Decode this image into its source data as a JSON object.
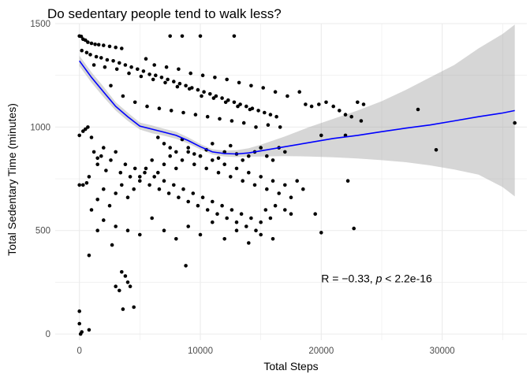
{
  "chart_data": {
    "type": "scatter",
    "title": "Do sedentary people tend to walk less?",
    "xlabel": "Total Steps",
    "ylabel": "Total Sedentary Time (minutes)",
    "xlim": [
      -2000,
      37000
    ],
    "ylim": [
      -30,
      1500
    ],
    "x_ticks": [
      0,
      10000,
      20000,
      30000
    ],
    "x_tick_labels": [
      "0",
      "10000",
      "20000",
      "30000"
    ],
    "y_ticks": [
      0,
      500,
      1000,
      1500
    ],
    "y_tick_labels": [
      "0",
      "500",
      "1000",
      "1500"
    ],
    "grid": true,
    "legend": "none",
    "annotation": {
      "prefix": "R = −0.33, ",
      "p_symbol": "p",
      "suffix": " < 2.2e-16",
      "x": 20000,
      "y": 250
    },
    "colors": {
      "points": "#000000",
      "smooth_line": "#0000ff",
      "ribbon": "#999999",
      "grid": "#ebebeb"
    },
    "smooth": {
      "type": "loess",
      "x": [
        0,
        1000,
        2000,
        3000,
        4000,
        5000,
        6000,
        7000,
        8000,
        9000,
        10000,
        11000,
        12000,
        13000,
        14000,
        15000,
        17000,
        19000,
        21000,
        23000,
        25000,
        27000,
        29000,
        31000,
        33000,
        35000,
        36000
      ],
      "y": [
        1320,
        1240,
        1170,
        1100,
        1050,
        1005,
        990,
        975,
        960,
        935,
        905,
        880,
        872,
        870,
        875,
        885,
        905,
        925,
        945,
        960,
        978,
        995,
        1010,
        1030,
        1050,
        1068,
        1080
      ],
      "lower": [
        1295,
        1215,
        1145,
        1080,
        1030,
        988,
        970,
        958,
        943,
        920,
        892,
        867,
        858,
        855,
        857,
        858,
        860,
        858,
        854,
        848,
        840,
        830,
        815,
        795,
        770,
        710,
        665
      ],
      "upper": [
        1345,
        1265,
        1195,
        1120,
        1070,
        1022,
        1008,
        992,
        977,
        950,
        918,
        893,
        886,
        888,
        898,
        915,
        955,
        1000,
        1040,
        1080,
        1125,
        1180,
        1240,
        1300,
        1380,
        1450,
        1495
      ]
    },
    "series": [
      {
        "name": "",
        "points": [
          [
            0,
            1440
          ],
          [
            150,
            1438
          ],
          [
            300,
            1425
          ],
          [
            500,
            1420
          ],
          [
            700,
            1410
          ],
          [
            1000,
            1405
          ],
          [
            1300,
            1400
          ],
          [
            1600,
            1398
          ],
          [
            2000,
            1395
          ],
          [
            2500,
            1390
          ],
          [
            3000,
            1385
          ],
          [
            3500,
            1380
          ],
          [
            200,
            1370
          ],
          [
            600,
            1360
          ],
          [
            900,
            1350
          ],
          [
            1400,
            1340
          ],
          [
            1800,
            1335
          ],
          [
            2300,
            1325
          ],
          [
            2800,
            1320
          ],
          [
            3300,
            1310
          ],
          [
            3800,
            1300
          ],
          [
            4300,
            1290
          ],
          [
            4800,
            1280
          ],
          [
            5300,
            1270
          ],
          [
            5800,
            1255
          ],
          [
            6300,
            1250
          ],
          [
            6800,
            1240
          ],
          [
            7300,
            1230
          ],
          [
            7800,
            1220
          ],
          [
            8300,
            1210
          ],
          [
            8800,
            1200
          ],
          [
            9300,
            1190
          ],
          [
            9800,
            1180
          ],
          [
            10300,
            1170
          ],
          [
            10800,
            1160
          ],
          [
            11300,
            1150
          ],
          [
            11800,
            1140
          ],
          [
            12300,
            1130
          ],
          [
            12800,
            1120
          ],
          [
            13300,
            1110
          ],
          [
            13800,
            1100
          ],
          [
            14300,
            1090
          ],
          [
            14800,
            1080
          ],
          [
            15300,
            1070
          ],
          [
            15800,
            1060
          ],
          [
            16300,
            1050
          ],
          [
            1200,
            1300
          ],
          [
            2100,
            1290
          ],
          [
            3100,
            1280
          ],
          [
            4100,
            1260
          ],
          [
            5100,
            1245
          ],
          [
            6100,
            1230
          ],
          [
            7100,
            1215
          ],
          [
            8100,
            1195
          ],
          [
            9100,
            1185
          ],
          [
            10100,
            1150
          ],
          [
            11100,
            1140
          ],
          [
            12100,
            1120
          ],
          [
            13100,
            1100
          ],
          [
            14100,
            1085
          ],
          [
            2600,
            1200
          ],
          [
            3600,
            1150
          ],
          [
            4600,
            1120
          ],
          [
            5600,
            1100
          ],
          [
            6600,
            1090
          ],
          [
            7600,
            1080
          ],
          [
            8600,
            1070
          ],
          [
            9600,
            1060
          ],
          [
            10600,
            1050
          ],
          [
            11600,
            1040
          ],
          [
            12600,
            1030
          ],
          [
            13600,
            1020
          ],
          [
            14600,
            1000
          ],
          [
            15600,
            1010
          ],
          [
            16600,
            1000
          ],
          [
            5500,
            1330
          ],
          [
            6200,
            1300
          ],
          [
            7200,
            1290
          ],
          [
            8200,
            1280
          ],
          [
            9200,
            1260
          ],
          [
            10200,
            1250
          ],
          [
            11200,
            1240
          ],
          [
            12200,
            1230
          ],
          [
            13200,
            1215
          ],
          [
            14200,
            1200
          ],
          [
            15200,
            1190
          ],
          [
            16200,
            1170
          ],
          [
            17200,
            1150
          ],
          [
            7500,
            1440
          ],
          [
            8500,
            1440
          ],
          [
            10000,
            1440
          ],
          [
            12800,
            1440
          ],
          [
            18200,
            1170
          ],
          [
            18700,
            1110
          ],
          [
            19200,
            1100
          ],
          [
            19800,
            1110
          ],
          [
            20400,
            1120
          ],
          [
            21000,
            1100
          ],
          [
            21500,
            1080
          ],
          [
            22000,
            1060
          ],
          [
            22500,
            1050
          ],
          [
            23000,
            1120
          ],
          [
            23500,
            1110
          ],
          [
            20000,
            960
          ],
          [
            22000,
            960
          ],
          [
            23300,
            1030
          ],
          [
            28000,
            1085
          ],
          [
            29500,
            890
          ],
          [
            36000,
            1020
          ],
          [
            300,
            720
          ],
          [
            800,
            760
          ],
          [
            1200,
            880
          ],
          [
            1500,
            820
          ],
          [
            1800,
            860
          ],
          [
            2200,
            790
          ],
          [
            2600,
            840
          ],
          [
            3000,
            880
          ],
          [
            3400,
            780
          ],
          [
            3800,
            820
          ],
          [
            4200,
            760
          ],
          [
            4600,
            800
          ],
          [
            5000,
            740
          ],
          [
            5400,
            780
          ],
          [
            5800,
            720
          ],
          [
            6200,
            760
          ],
          [
            6600,
            700
          ],
          [
            7000,
            740
          ],
          [
            7400,
            680
          ],
          [
            7800,
            720
          ],
          [
            8200,
            660
          ],
          [
            8600,
            700
          ],
          [
            9000,
            640
          ],
          [
            9400,
            680
          ],
          [
            9800,
            620
          ],
          [
            10200,
            660
          ],
          [
            10600,
            600
          ],
          [
            11000,
            640
          ],
          [
            11400,
            580
          ],
          [
            11800,
            620
          ],
          [
            12200,
            560
          ],
          [
            12600,
            600
          ],
          [
            13000,
            540
          ],
          [
            13400,
            580
          ],
          [
            13800,
            520
          ],
          [
            14200,
            560
          ],
          [
            14600,
            500
          ],
          [
            15000,
            540
          ],
          [
            15400,
            600
          ],
          [
            15800,
            560
          ],
          [
            16200,
            620
          ],
          [
            1000,
            600
          ],
          [
            1500,
            650
          ],
          [
            2000,
            700
          ],
          [
            2500,
            620
          ],
          [
            3000,
            680
          ],
          [
            3500,
            720
          ],
          [
            4000,
            660
          ],
          [
            4500,
            700
          ],
          [
            5000,
            760
          ],
          [
            5500,
            800
          ],
          [
            6000,
            840
          ],
          [
            6500,
            780
          ],
          [
            7000,
            820
          ],
          [
            7500,
            860
          ],
          [
            8000,
            800
          ],
          [
            8500,
            840
          ],
          [
            9000,
            880
          ],
          [
            9500,
            820
          ],
          [
            10000,
            860
          ],
          [
            10500,
            800
          ],
          [
            11000,
            840
          ],
          [
            11500,
            780
          ],
          [
            12000,
            820
          ],
          [
            12500,
            760
          ],
          [
            13000,
            800
          ],
          [
            13500,
            740
          ],
          [
            14000,
            780
          ],
          [
            14500,
            720
          ],
          [
            15000,
            760
          ],
          [
            15500,
            700
          ],
          [
            16000,
            740
          ],
          [
            16500,
            680
          ],
          [
            17000,
            720
          ],
          [
            17500,
            660
          ],
          [
            18000,
            740
          ],
          [
            18500,
            700
          ],
          [
            2000,
            550
          ],
          [
            3000,
            520
          ],
          [
            4000,
            500
          ],
          [
            5000,
            480
          ],
          [
            6000,
            560
          ],
          [
            7000,
            500
          ],
          [
            8000,
            460
          ],
          [
            9000,
            520
          ],
          [
            10000,
            480
          ],
          [
            11000,
            540
          ],
          [
            12000,
            460
          ],
          [
            13000,
            500
          ],
          [
            14000,
            440
          ],
          [
            15000,
            480
          ],
          [
            16000,
            460
          ],
          [
            8800,
            330
          ],
          [
            19500,
            580
          ],
          [
            20000,
            490
          ],
          [
            22700,
            510
          ],
          [
            22200,
            740
          ],
          [
            17500,
            580
          ],
          [
            17000,
            600
          ],
          [
            3500,
            300
          ],
          [
            3800,
            280
          ],
          [
            4000,
            250
          ],
          [
            4200,
            230
          ],
          [
            3000,
            230
          ],
          [
            3300,
            210
          ],
          [
            3600,
            120
          ],
          [
            4500,
            130
          ],
          [
            2700,
            430
          ],
          [
            1500,
            500
          ],
          [
            800,
            380
          ],
          [
            0,
            110
          ],
          [
            0,
            50
          ],
          [
            200,
            10
          ],
          [
            800,
            20
          ],
          [
            100,
            0
          ],
          [
            300,
            980
          ],
          [
            500,
            990
          ],
          [
            700,
            1000
          ],
          [
            1000,
            950
          ],
          [
            0,
            960
          ],
          [
            1500,
            850
          ],
          [
            2000,
            900
          ],
          [
            0,
            720
          ],
          [
            600,
            730
          ],
          [
            6500,
            950
          ],
          [
            7000,
            920
          ],
          [
            7500,
            900
          ],
          [
            8000,
            880
          ],
          [
            8500,
            940
          ],
          [
            9000,
            900
          ],
          [
            9500,
            870
          ],
          [
            10000,
            860
          ],
          [
            10500,
            890
          ],
          [
            11000,
            920
          ],
          [
            11500,
            850
          ],
          [
            12000,
            880
          ],
          [
            12500,
            910
          ],
          [
            13000,
            870
          ],
          [
            13500,
            840
          ],
          [
            14000,
            860
          ],
          [
            14500,
            880
          ],
          [
            15000,
            900
          ],
          [
            15500,
            860
          ],
          [
            16000,
            840
          ],
          [
            16500,
            900
          ],
          [
            17000,
            880
          ]
        ]
      }
    ]
  }
}
